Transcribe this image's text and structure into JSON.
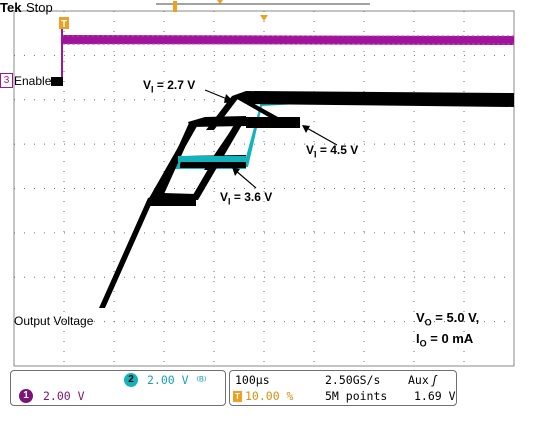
{
  "header": {
    "brand": "Tek",
    "acquisition_state": "Stop"
  },
  "colors": {
    "ch1": "#a0149a",
    "ch2": "#12b3bc",
    "ch3": "#000000",
    "trigger": "#f0a020",
    "grid_dots": "#6f6f6f",
    "ch2_scale_text": "#1aa2b0",
    "ch1_scale_text": "#7a1478",
    "trigger_pos_text": "#d4900f"
  },
  "markers": {
    "channel3": "3",
    "channel3_label": "Enable",
    "trigger_marker": "T"
  },
  "annotations": {
    "vi_27": {
      "main": "V",
      "sub": "I",
      "rest": " = 2.7 V"
    },
    "vi_45": {
      "main": "V",
      "sub": "I",
      "rest": " = 4.5 V"
    },
    "vi_36": {
      "main": "V",
      "sub": "I",
      "rest": " = 3.6 V"
    },
    "output_voltage": "Output Voltage",
    "vo": {
      "main": "V",
      "sub": "O",
      "rest": " = 5.0 V,"
    },
    "io": {
      "main": "I",
      "sub": "O",
      "rest": " = 0 mA"
    }
  },
  "status": {
    "ch2": {
      "number": "2",
      "scale": "2.00 V",
      "coupling_icon": "bandwidth-limit-icon"
    },
    "ch1": {
      "number": "1",
      "scale": "2.00 V"
    },
    "timebase": "100µs",
    "trigger_position": "10.00 %",
    "sample_rate": "2.50GS/s",
    "record_length": "5M points",
    "trigger_source": "Aux",
    "trigger_slope_icon": "rising-edge-icon",
    "trigger_level": "1.69 V"
  }
}
